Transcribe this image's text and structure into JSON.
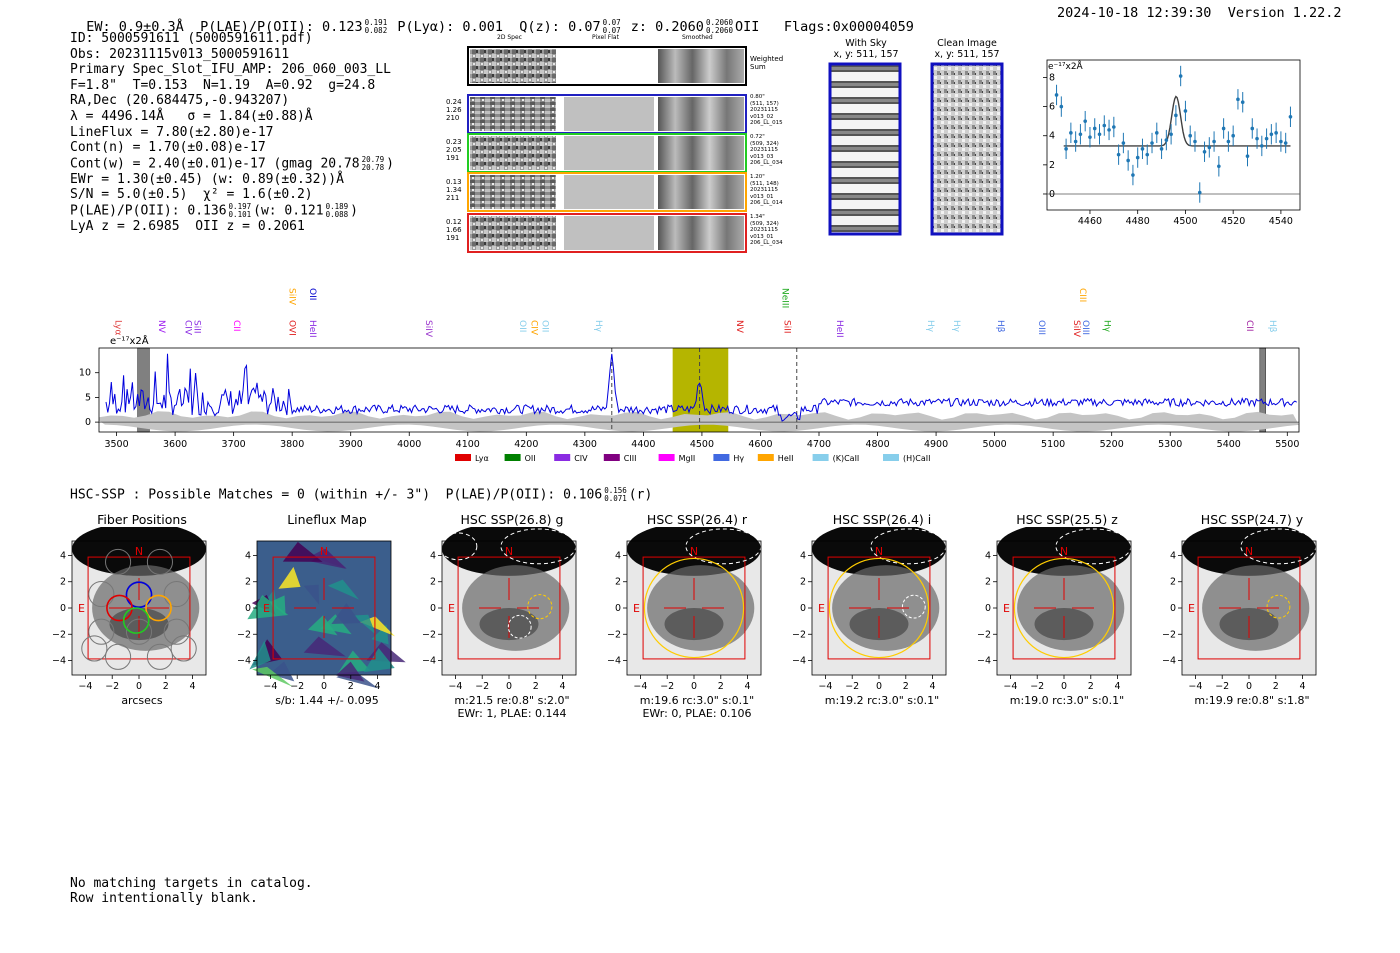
{
  "header": {
    "ew": "EW: 0.9±0.3Å",
    "plae_label": "P(LAE)/P(OII): 0.123",
    "plae_hi": "0.191",
    "plae_lo": "0.082",
    "plya": "P(Lyα): 0.001",
    "q_label": "Q(z): 0.07",
    "q_hi": "0.07",
    "q_lo": "0.07",
    "z_label": "z: 0.2060",
    "z_hi": "0.2060",
    "z_lo": "0.2060",
    "z_line": "OII",
    "flags": "Flags:0x00004059",
    "timestamp": "2024-10-18 12:39:30",
    "version": "Version 1.22.2"
  },
  "info": {
    "id": "ID: 5000591611 (5000591611.pdf)",
    "obs": "Obs: 20231115v013_5000591611",
    "primary": "Primary Spec_Slot_IFU_AMP: 206_060_003_LL",
    "params": "F=1.8\"  T=0.153  N=1.19  A=0.92  g=24.8",
    "radec": "RA,Dec (20.684475,-0.943207)",
    "lambda": "λ = 4496.14Å   σ = 1.84(±0.88)Å",
    "lineflux": "LineFlux = 7.80(±2.80)e-17",
    "contn": "Cont(n) = 1.70(±0.08)e-17",
    "contw": "Cont(w) = 2.40(±0.01)e-17 (gmag 20.78",
    "contw_hi": "20.79",
    "contw_lo": "20.78",
    "contw_end": ")",
    "ewr": "EWr = 1.30(±0.45) (w: 0.89(±0.32))Å",
    "sn": "S/N = 5.0(±0.5)  χ² = 1.6(±0.2)",
    "plae2": "P(LAE)/P(OII): 0.136",
    "plae2_hi": "0.197",
    "plae2_lo": "0.101",
    "plae2_w": "(w: 0.121",
    "plae2_w_hi": "0.189",
    "plae2_w_lo": "0.088",
    "plae2_end": ")",
    "lya": "LyA z = 2.6985  OII z = 0.2061"
  },
  "cutouts": {
    "col_2d": "2D Spec",
    "col_flat": "Pixel Flat",
    "col_smooth": "Smoothed",
    "weighted": "Weighted\nSum",
    "rows": [
      {
        "left": "0.24\n1.26\n210",
        "right": "0.80\"\n(511, 157)\n20231115\nv013_02\n206_LL_015",
        "color": "#2020c0"
      },
      {
        "left": "0.23\n2.05\n191",
        "right": "0.72\"\n(509, 324)\n20231115\nv013_03\n206_LL_034",
        "color": "#22cc22"
      },
      {
        "left": "0.13\n1.34\n211",
        "right": "1.20\"\n(511, 148)\n20231115\nv013_01\n206_LL_014",
        "color": "#ffa500"
      },
      {
        "left": "0.12\n1.66\n191",
        "right": "1.34\"\n(509, 324)\n20231115\nv013_01\n206_LL_034",
        "color": "#e02020"
      }
    ],
    "with_sky": "With Sky",
    "with_sky_xy": "x, y: 511, 157",
    "clean": "Clean Image",
    "clean_xy": "x, y: 511, 157"
  },
  "zoom_chart": {
    "unit": "e⁻¹⁷x2Å"
  },
  "chart_data": [
    {
      "type": "scatter",
      "title": "",
      "ylabel": "e⁻¹⁷x2Å",
      "xlim": [
        4442,
        4548
      ],
      "ylim": [
        -1.1,
        9.2
      ],
      "xticks": [
        4460,
        4480,
        4500,
        4520,
        4540
      ],
      "yticks": [
        0,
        2,
        4,
        6,
        8
      ],
      "x": [
        4446,
        4448,
        4450,
        4452,
        4454,
        4456,
        4458,
        4460,
        4462,
        4464,
        4466,
        4468,
        4470,
        4472,
        4474,
        4476,
        4478,
        4480,
        4482,
        4484,
        4486,
        4488,
        4490,
        4492,
        4494,
        4496,
        4498,
        4500,
        4502,
        4504,
        4506,
        4508,
        4510,
        4512,
        4514,
        4516,
        4518,
        4520,
        4522,
        4524,
        4526,
        4528,
        4530,
        4532,
        4534,
        4536,
        4538,
        4540,
        4542,
        4544
      ],
      "values": [
        6.8,
        6.0,
        3.1,
        4.2,
        3.6,
        4.1,
        5.0,
        3.9,
        4.5,
        4.1,
        4.7,
        4.4,
        4.6,
        2.7,
        3.5,
        2.3,
        1.3,
        2.5,
        3.1,
        2.7,
        3.5,
        4.2,
        3.1,
        3.7,
        4.1,
        5.4,
        8.1,
        5.7,
        4.0,
        3.6,
        0.1,
        2.9,
        3.2,
        3.6,
        1.9,
        4.5,
        3.6,
        4.0,
        6.5,
        6.3,
        2.6,
        4.5,
        3.8,
        3.3,
        3.8,
        4.1,
        4.2,
        3.6,
        3.5,
        5.3
      ],
      "fit_continuum": 3.3,
      "fit_amplitude": 3.4,
      "fit_center": 4496.1,
      "fit_sigma": 1.84,
      "color_points": "#1f77b4",
      "color_fit": "#404040"
    },
    {
      "type": "line",
      "title": "",
      "ylabel": "e⁻¹⁷x2Å",
      "xlim": [
        3470,
        5520
      ],
      "ylim": [
        -2,
        15
      ],
      "xticks": [
        3500,
        3600,
        3700,
        3800,
        3900,
        4000,
        4100,
        4200,
        4300,
        4400,
        4500,
        4600,
        4700,
        4800,
        4900,
        5000,
        5100,
        5200,
        5300,
        5400,
        5500
      ],
      "yticks": [
        0,
        5,
        10
      ],
      "line_color": "#0000dd",
      "highlight_band": [
        4450,
        4545
      ],
      "highlight_color": "#b5b500",
      "emission_peaks": [
        {
          "x": 4346,
          "height": 11
        },
        {
          "x": 4496,
          "height": 6
        }
      ],
      "masked_bands": [
        [
          3536,
          3556
        ],
        [
          5453,
          5463
        ]
      ],
      "dashed_lines": [
        4346,
        4496,
        4662
      ],
      "line_labels": [
        {
          "x": 3532,
          "text": "Lyα",
          "color": "#e04040",
          "row": 1
        },
        {
          "x": 3607,
          "text": "NV",
          "color": "#a020f0",
          "row": 1
        },
        {
          "x": 3652,
          "text": "CIV",
          "color": "#8a2be2",
          "row": 1
        },
        {
          "x": 3667,
          "text": "SiII",
          "color": "#8a2be2",
          "row": 1
        },
        {
          "x": 3735,
          "text": "CII",
          "color": "#ff00ff",
          "row": 1
        },
        {
          "x": 3830,
          "text": "SiIV",
          "color": "#ffa500",
          "row": 0
        },
        {
          "x": 3830,
          "text": "OVI",
          "color": "#e02020",
          "row": 1
        },
        {
          "x": 3865,
          "text": "OII",
          "color": "#0000cd",
          "row": 0
        },
        {
          "x": 3865,
          "text": "HeII",
          "color": "#8a2be2",
          "row": 1
        },
        {
          "x": 4063,
          "text": "SiIV",
          "color": "#9932cc",
          "row": 1
        },
        {
          "x": 4223,
          "text": "OII",
          "color": "#87ceeb",
          "row": 1
        },
        {
          "x": 4243,
          "text": "CIV",
          "color": "#ffa500",
          "row": 1
        },
        {
          "x": 4262,
          "text": "OII",
          "color": "#87ceeb",
          "row": 1
        },
        {
          "x": 4353,
          "text": "Hγ",
          "color": "#87ceeb",
          "row": 1
        },
        {
          "x": 4594,
          "text": "NV",
          "color": "#e02020",
          "row": 1
        },
        {
          "x": 4672,
          "text": "NeIII",
          "color": "#22aa22",
          "row": 0
        },
        {
          "x": 4675,
          "text": "SiII",
          "color": "#e02020",
          "row": 1
        },
        {
          "x": 4765,
          "text": "HeII",
          "color": "#8a2be2",
          "row": 1
        },
        {
          "x": 4920,
          "text": "Hγ",
          "color": "#87ceeb",
          "row": 1
        },
        {
          "x": 4965,
          "text": "Hγ",
          "color": "#87ceeb",
          "row": 1
        },
        {
          "x": 5040,
          "text": "Hβ",
          "color": "#4169e1",
          "row": 1
        },
        {
          "x": 5110,
          "text": "OIII",
          "color": "#4169e1",
          "row": 1
        },
        {
          "x": 5170,
          "text": "SiIV",
          "color": "#e02020",
          "row": 1
        },
        {
          "x": 5180,
          "text": "CIII",
          "color": "#ffa500",
          "row": 0
        },
        {
          "x": 5185,
          "text": "OIII",
          "color": "#4169e1",
          "row": 1
        },
        {
          "x": 5222,
          "text": "Hγ",
          "color": "#22aa22",
          "row": 1
        },
        {
          "x": 5465,
          "text": "CII",
          "color": "#a020a0",
          "row": 1
        },
        {
          "x": 5505,
          "text": "Hβ",
          "color": "#87ceeb",
          "row": 1
        }
      ],
      "legend": [
        {
          "label": "Lyα",
          "color": "#e00000"
        },
        {
          "label": "OII",
          "color": "#008000"
        },
        {
          "label": "CIV",
          "color": "#8a2be2"
        },
        {
          "label": "CIII",
          "color": "#800080"
        },
        {
          "label": "MgII",
          "color": "#ff00ff"
        },
        {
          "label": "Hγ",
          "color": "#4169e1"
        },
        {
          "label": "HeII",
          "color": "#ffa500"
        },
        {
          "label": "(K)CaII",
          "color": "#87ceeb"
        },
        {
          "label": "(H)CaII",
          "color": "#87ceeb"
        }
      ]
    }
  ],
  "hsc": {
    "title": "HSC-SSP : Possible Matches = 0 (within +/- 3\")  P(LAE)/P(OII): 0.106",
    "title_hi": "0.156",
    "title_lo": "0.071",
    "title_end": "(r)",
    "panels": [
      {
        "title": "Fiber Positions",
        "cap1": "arcsecs",
        "cap2": "",
        "kind": "fiber"
      },
      {
        "title": "Lineflux Map",
        "cap1": "s/b: 1.44 +/- 0.095",
        "cap2": "",
        "kind": "lineflux"
      },
      {
        "title": "HSC SSP(26.8) g",
        "cap1": "m:21.5  re:0.8\"  s:2.0\"",
        "cap2": "EWr: 1, PLAE: 0.144",
        "kind": "g"
      },
      {
        "title": "HSC SSP(26.4) r",
        "cap1": "m:19.6 rc:3.0\"  s:0.1\"",
        "cap2": "EWr: 0, PLAE: 0.106",
        "kind": "r"
      },
      {
        "title": "HSC SSP(26.4) i",
        "cap1": "m:19.2 rc:3.0\"  s:0.1\"",
        "cap2": "",
        "kind": "i"
      },
      {
        "title": "HSC SSP(25.5) z",
        "cap1": "m:19.0 rc:3.0\"  s:0.1\"",
        "cap2": "",
        "kind": "z"
      },
      {
        "title": "HSC SSP(24.7) y",
        "cap1": "m:19.9  re:0.8\"  s:1.8\"",
        "cap2": "",
        "kind": "y"
      }
    ],
    "ticks": [
      "−4",
      "−2",
      "0",
      "2",
      "4"
    ],
    "north": "N",
    "east": "E"
  },
  "footer": {
    "line1": "No matching targets in catalog.",
    "line2": "Row intentionally blank."
  }
}
